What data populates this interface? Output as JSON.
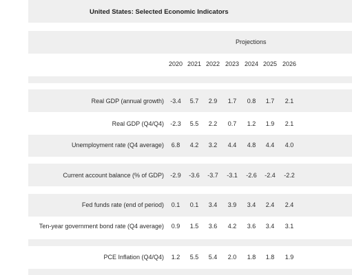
{
  "title": "United States: Selected Economic Indicators",
  "projections_label": "Projections",
  "years": [
    "2020",
    "2021",
    "2022",
    "2023",
    "2024",
    "2025",
    "2026"
  ],
  "rows": [
    {
      "label": "Real GDP (annual growth)",
      "values": [
        "-3.4",
        "5.7",
        "2.9",
        "1.7",
        "0.8",
        "1.7",
        "2.1"
      ]
    },
    {
      "label": "Real GDP (Q4/Q4)",
      "values": [
        "-2.3",
        "5.5",
        "2.2",
        "0.7",
        "1.2",
        "1.9",
        "2.1"
      ]
    },
    {
      "label": "Unemployment rate (Q4 average)",
      "values": [
        "6.8",
        "4.2",
        "3.2",
        "4.4",
        "4.8",
        "4.4",
        "4.0"
      ]
    },
    {
      "label": "Current account balance (% of GDP)",
      "values": [
        "-2.9",
        "-3.6",
        "-3.7",
        "-3.1",
        "-2.6",
        "-2.4",
        "-2.2"
      ]
    },
    {
      "label": "Fed funds rate (end of period)",
      "values": [
        "0.1",
        "0.1",
        "3.4",
        "3.9",
        "3.4",
        "2.4",
        "2.4"
      ]
    },
    {
      "label": "Ten-year government bond rate (Q4 average)",
      "values": [
        "0.9",
        "1.5",
        "3.6",
        "4.2",
        "3.6",
        "3.4",
        "3.1"
      ]
    },
    {
      "label": "PCE Inflation (Q4/Q4)",
      "values": [
        "1.2",
        "5.5",
        "5.4",
        "2.0",
        "1.8",
        "1.8",
        "1.9"
      ]
    }
  ]
}
